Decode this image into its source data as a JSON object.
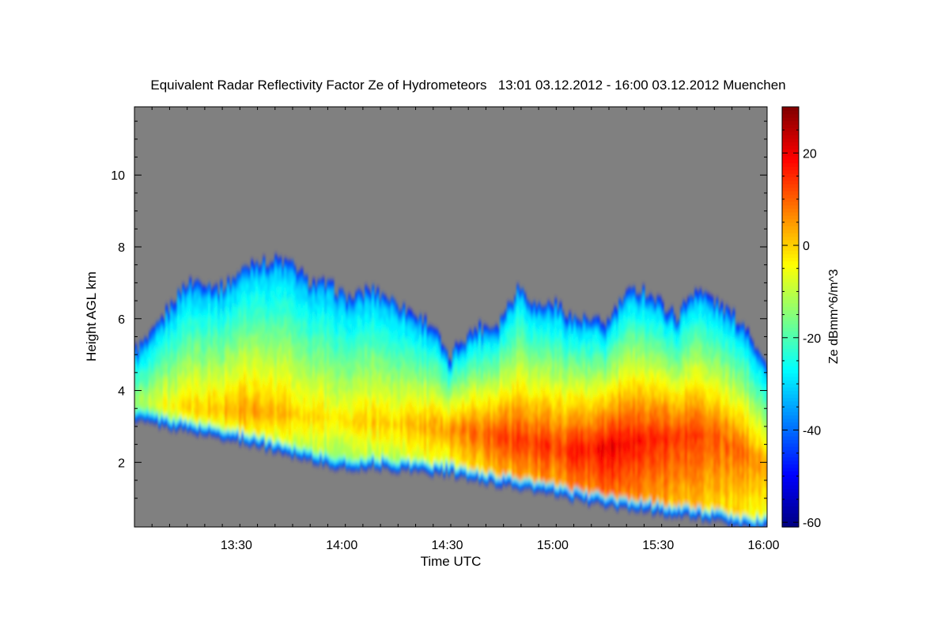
{
  "chart_data": {
    "type": "heatmap",
    "title": "Equivalent Radar Reflectivity Factor Ze of Hydrometeors   13:01 03.12.2012 - 16:00 03.12.2012 Muenchen",
    "xlabel": "Time UTC",
    "ylabel": "Height AGL km",
    "xlim_minutes": [
      781,
      961
    ],
    "ylim": [
      0.2,
      11.9
    ],
    "x_ticks": [
      {
        "minute": 810,
        "label": "13:30"
      },
      {
        "minute": 840,
        "label": "14:00"
      },
      {
        "minute": 870,
        "label": "14:30"
      },
      {
        "minute": 900,
        "label": "15:00"
      },
      {
        "minute": 930,
        "label": "15:30"
      },
      {
        "minute": 960,
        "label": "16:00"
      }
    ],
    "y_ticks": [
      {
        "value": 2,
        "label": "2"
      },
      {
        "value": 4,
        "label": "4"
      },
      {
        "value": 6,
        "label": "6"
      },
      {
        "value": 8,
        "label": "8"
      },
      {
        "value": 10,
        "label": "10"
      }
    ],
    "colorbar": {
      "label": "Ze dBmm^6/m^3",
      "range": [
        -61,
        30
      ],
      "ticks": [
        {
          "value": 20,
          "label": "20"
        },
        {
          "value": 0,
          "label": "0"
        },
        {
          "value": -20,
          "label": "-20"
        },
        {
          "value": -40,
          "label": "-40"
        },
        {
          "value": -60,
          "label": "-60"
        }
      ],
      "colormap": "jet"
    },
    "no_data_color": "#808080",
    "echo_envelope": {
      "time_minutes": [
        781,
        785,
        790,
        795,
        800,
        805,
        810,
        815,
        818,
        822,
        826,
        830,
        836,
        842,
        848,
        854,
        860,
        866,
        870,
        873,
        878,
        884,
        890,
        895,
        900,
        905,
        910,
        915,
        920,
        925,
        930,
        935,
        940,
        945,
        950,
        955,
        961
      ],
      "echo_top_km": [
        5.1,
        5.4,
        6.2,
        6.9,
        7.0,
        6.8,
        7.2,
        7.6,
        7.5,
        7.6,
        7.4,
        7.0,
        6.9,
        6.5,
        6.8,
        6.5,
        6.1,
        5.7,
        4.8,
        5.3,
        5.7,
        5.8,
        6.9,
        6.3,
        6.4,
        6.0,
        5.9,
        5.8,
        6.6,
        6.8,
        6.4,
        6.0,
        6.8,
        6.5,
        6.1,
        5.7,
        4.5
      ],
      "echo_base_km": [
        3.2,
        3.1,
        3.0,
        2.9,
        2.8,
        2.7,
        2.6,
        2.5,
        2.4,
        2.3,
        2.2,
        2.1,
        1.9,
        1.8,
        1.9,
        1.8,
        1.8,
        1.7,
        1.7,
        1.6,
        1.5,
        1.4,
        1.3,
        1.2,
        1.1,
        1.0,
        0.9,
        0.8,
        0.7,
        0.7,
        0.6,
        0.5,
        0.5,
        0.4,
        0.3,
        0.2,
        0.2
      ],
      "max_layer_km": [
        3.6,
        3.6,
        3.5,
        3.5,
        3.4,
        3.4,
        3.4,
        3.4,
        3.3,
        3.3,
        3.3,
        3.2,
        3.2,
        3.1,
        3.1,
        3.0,
        3.0,
        3.0,
        2.9,
        2.9,
        2.8,
        2.7,
        2.6,
        2.5,
        2.4,
        2.3,
        2.3,
        2.4,
        2.5,
        2.6,
        2.7,
        2.7,
        2.8,
        2.7,
        2.5,
        2.2,
        1.8
      ],
      "max_ze_dbz": [
        -12,
        -8,
        -4,
        -2,
        0,
        2,
        4,
        4,
        3,
        2,
        2,
        0,
        -2,
        -2,
        0,
        0,
        2,
        4,
        6,
        8,
        10,
        12,
        14,
        14,
        14,
        16,
        18,
        20,
        20,
        18,
        16,
        14,
        14,
        12,
        10,
        8,
        6
      ]
    }
  }
}
